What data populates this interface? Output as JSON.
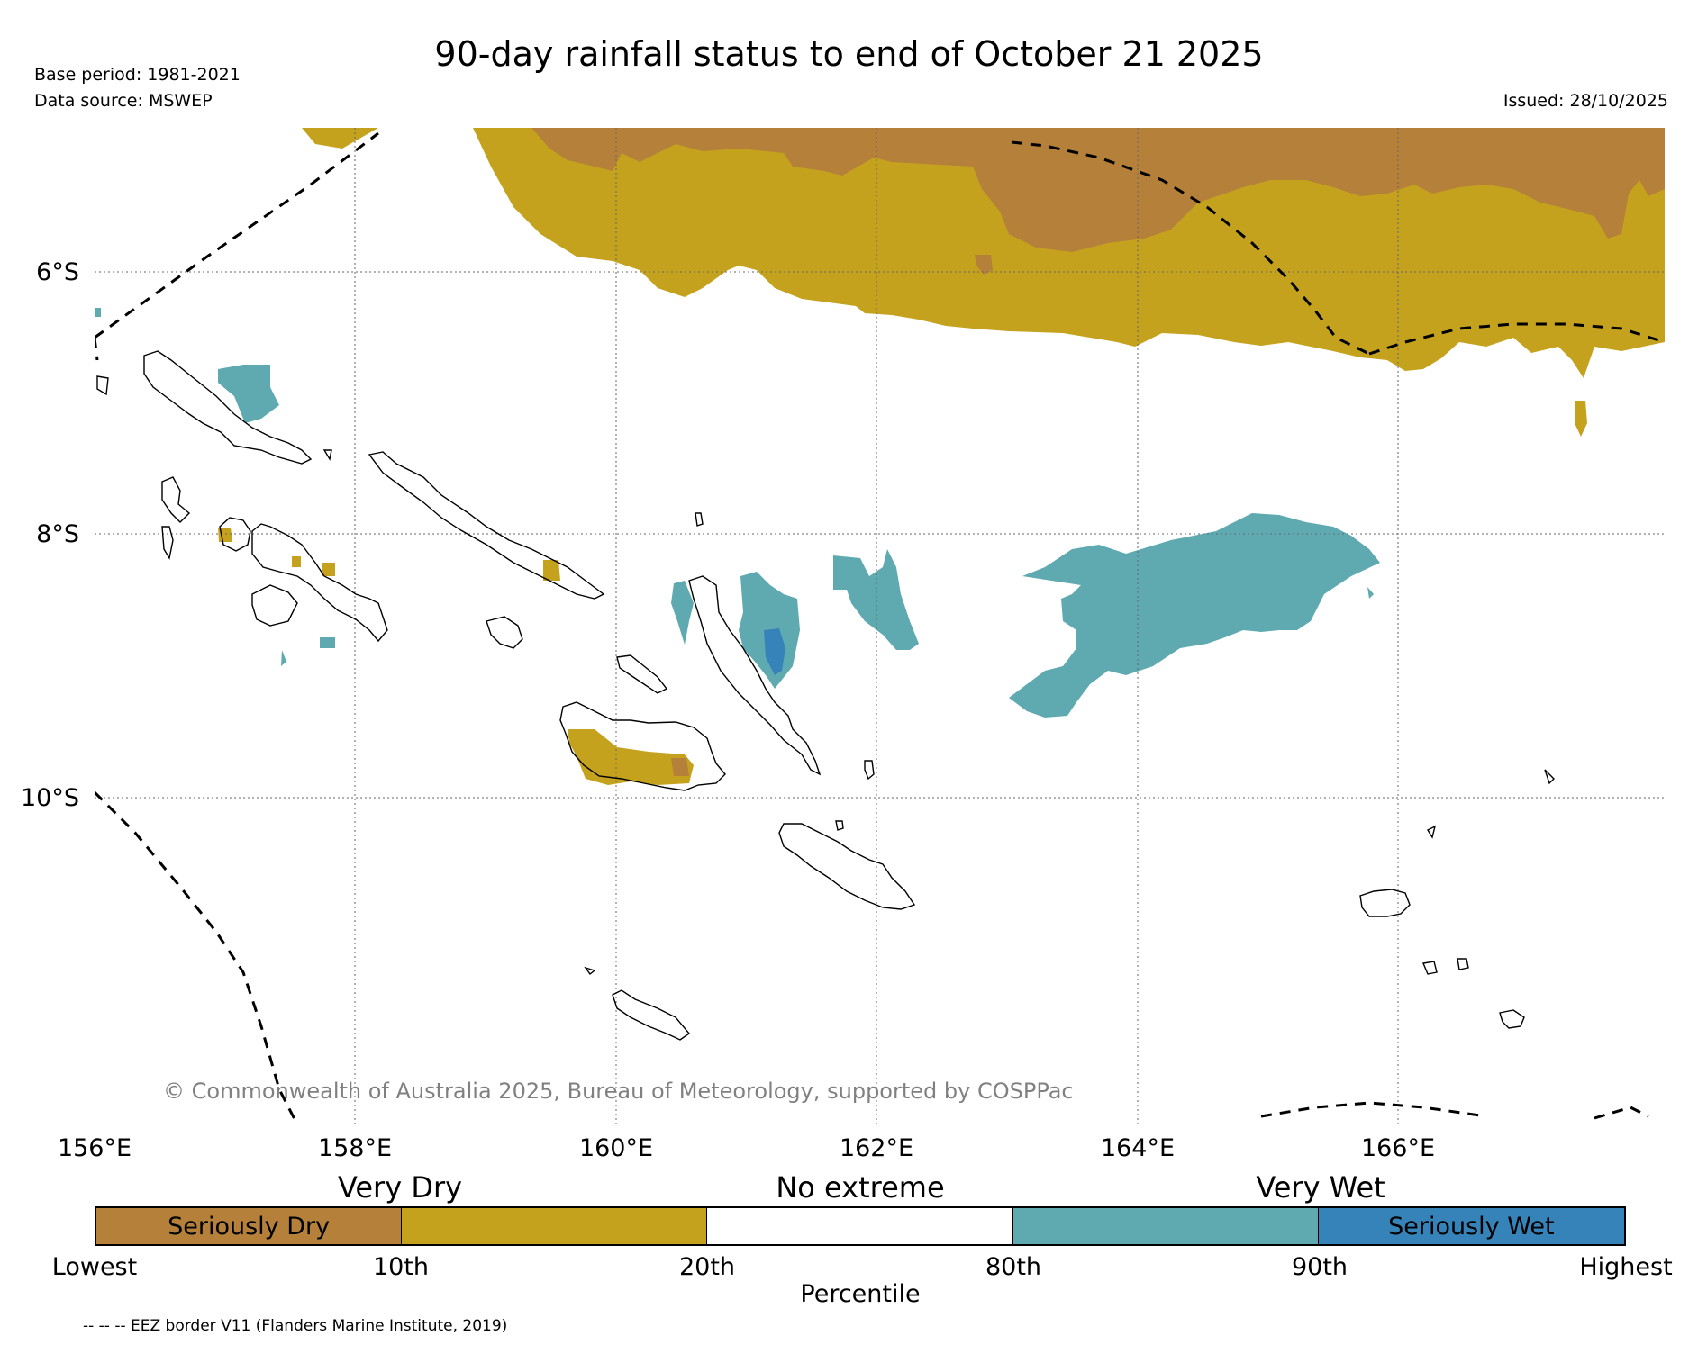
{
  "title": "90-day rainfall status to end of October 21 2025",
  "base_period": "Base period: 1981-2021",
  "data_source": "Data source: MSWEP",
  "issued": "Issued: 28/10/2025",
  "map": {
    "lon_labels": [
      "156°E",
      "158°E",
      "160°E",
      "162°E",
      "164°E",
      "166°E"
    ],
    "lat_labels": [
      "6°S",
      "8°S",
      "10°S"
    ],
    "copyright": "© Commonwealth of Australia 2025, Bureau of Meteorology, supported by COSPPac",
    "icons": [
      "coastline-icon",
      "eez-border-icon",
      "rainfall-anomaly-icon"
    ]
  },
  "legend": {
    "category_headers": [
      "Very Dry",
      "No extreme",
      "Very Wet"
    ],
    "segments": [
      {
        "label": "Seriously Dry",
        "color": "#b5803a"
      },
      {
        "label": "",
        "color": "#c4a21e"
      },
      {
        "label": "",
        "color": "#ffffff"
      },
      {
        "label": "",
        "color": "#5eaab0"
      },
      {
        "label": "Seriously Wet",
        "color": "#3583b8"
      }
    ],
    "ticks": [
      "Lowest",
      "10th",
      "20th",
      "80th",
      "90th",
      "Highest"
    ],
    "axis_label": "Percentile"
  },
  "eez_note": "-- -- -- EEZ border V11 (Flanders Marine Institute, 2019)"
}
